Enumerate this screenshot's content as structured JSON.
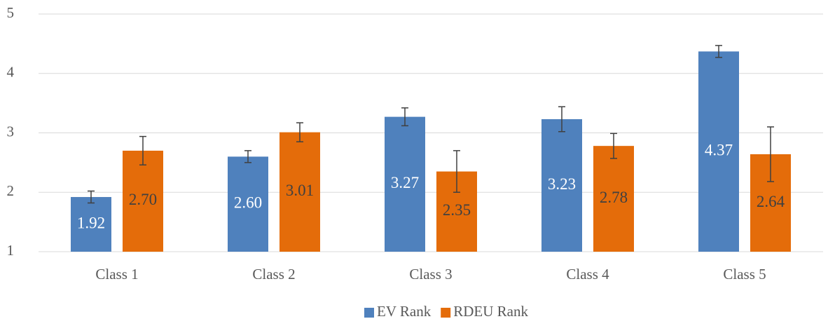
{
  "chart_data": {
    "type": "bar",
    "categories": [
      "Class 1",
      "Class 2",
      "Class 3",
      "Class 4",
      "Class 5"
    ],
    "series": [
      {
        "name": "EV Rank",
        "color": "#4f81bd",
        "values": [
          1.92,
          2.6,
          3.27,
          3.23,
          4.37
        ],
        "value_labels": [
          "1.92",
          "2.60",
          "3.27",
          "3.23",
          "4.37"
        ],
        "errors": [
          0.1,
          0.1,
          0.15,
          0.21,
          0.1
        ]
      },
      {
        "name": "RDEU Rank",
        "color": "#e46c0a",
        "values": [
          2.7,
          3.01,
          2.35,
          2.78,
          2.64
        ],
        "value_labels": [
          "2.70",
          "3.01",
          "2.35",
          "2.78",
          "2.64"
        ],
        "errors": [
          0.24,
          0.16,
          0.35,
          0.21,
          0.46
        ]
      }
    ],
    "ylim": [
      1,
      5
    ],
    "yticks": [
      1,
      2,
      3,
      4,
      5
    ],
    "grid": true,
    "legend": "bottom"
  }
}
